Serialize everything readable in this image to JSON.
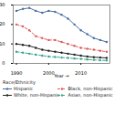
{
  "chart_data": {
    "type": "line",
    "x_label": "Year",
    "legend_title": "Race/Ethnicity",
    "legend": "bottom",
    "marker": "circle",
    "x": [
      1990,
      1992,
      1994,
      1996,
      1998,
      2000,
      2002,
      2004,
      2006,
      2008,
      2010,
      2012,
      2014,
      2016,
      2018
    ],
    "xlim": [
      1989,
      2019
    ],
    "xticks": [
      1990,
      2000,
      2010
    ],
    "ylim": [
      0,
      30
    ],
    "yticks": [
      0,
      10,
      20,
      30
    ],
    "series": [
      {
        "name": "Hispanic",
        "color": "#4a6fa5",
        "line_style": "solid",
        "values": [
          27,
          28,
          28.5,
          27,
          26,
          27,
          26.5,
          25,
          23,
          20,
          17,
          15,
          13,
          12,
          11
        ]
      },
      {
        "name": "Black, non-Hispanic",
        "color": "#e05a5a",
        "line_style": "dashed",
        "values": [
          20,
          19,
          17,
          14,
          13,
          12,
          12,
          11,
          10,
          9,
          8,
          7.5,
          7,
          6.5,
          6
        ]
      },
      {
        "name": "White, non-Hispanic",
        "color": "#222222",
        "line_style": "solid",
        "values": [
          10,
          9.5,
          9,
          8,
          7,
          6.5,
          6,
          5.5,
          5,
          4.5,
          4,
          3.5,
          3.2,
          3,
          2.8
        ]
      },
      {
        "name": "Asian, non-Hispanic",
        "color": "#3aa58c",
        "line_style": "dashed",
        "values": [
          6,
          5.5,
          5,
          4.5,
          4,
          3.5,
          3.3,
          3,
          2.8,
          2.5,
          2.3,
          2,
          1.8,
          1.6,
          1.5
        ]
      }
    ]
  }
}
